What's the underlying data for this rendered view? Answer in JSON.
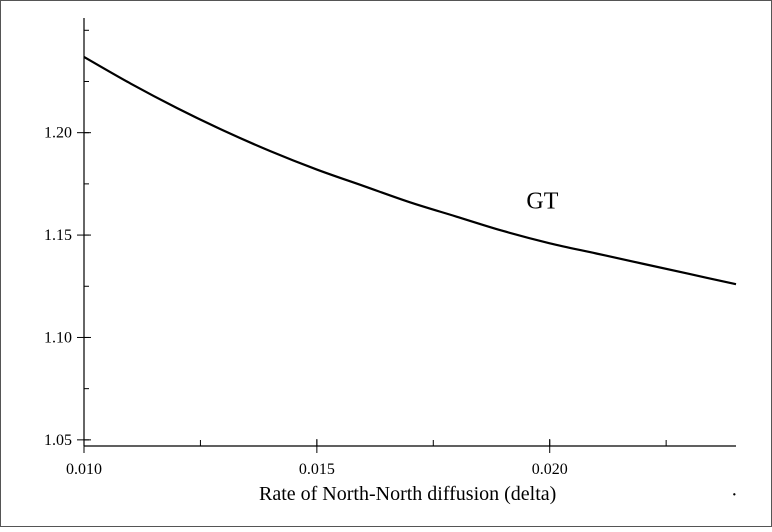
{
  "chart_data": {
    "type": "line",
    "title": "",
    "xlabel": "Rate of North-North diffusion (delta)",
    "ylabel": "",
    "xlim": [
      0.01,
      0.024
    ],
    "ylim": [
      1.047,
      1.256
    ],
    "x_ticks": [
      {
        "value": 0.01,
        "label": "0.010"
      },
      {
        "value": 0.015,
        "label": "0.015"
      },
      {
        "value": 0.02,
        "label": "0.020"
      }
    ],
    "y_ticks": [
      {
        "value": 1.05,
        "label": "1.05"
      },
      {
        "value": 1.1,
        "label": "1.10"
      },
      {
        "value": 1.15,
        "label": "1.15"
      },
      {
        "value": 1.2,
        "label": "1.20"
      }
    ],
    "x_minor_step": 0.0025,
    "y_minor_step": 0.025,
    "grid": false,
    "series": [
      {
        "name": "GT",
        "x": [
          0.01,
          0.011,
          0.012,
          0.013,
          0.014,
          0.015,
          0.016,
          0.017,
          0.018,
          0.019,
          0.02,
          0.021,
          0.022,
          0.023,
          0.024
        ],
        "y": [
          1.237,
          1.224,
          1.212,
          1.201,
          1.191,
          1.182,
          1.174,
          1.166,
          1.159,
          1.152,
          1.146,
          1.141,
          1.136,
          1.131,
          1.126
        ]
      }
    ],
    "annotations": [
      {
        "text": "GT",
        "x": 0.0195,
        "y": 1.163
      }
    ],
    "stray_mark": "·"
  }
}
